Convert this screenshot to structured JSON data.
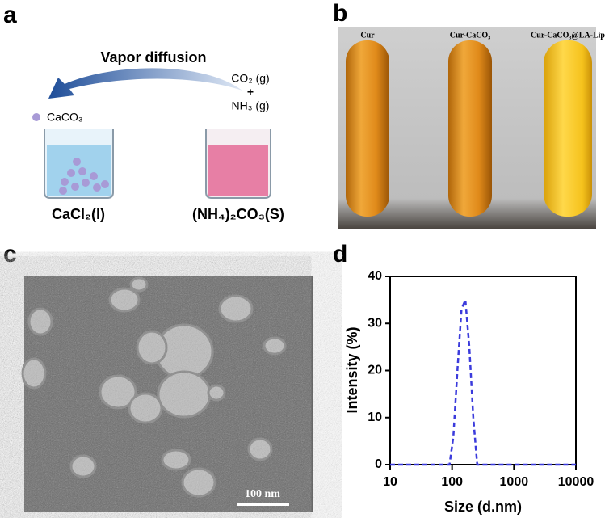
{
  "panels": {
    "a": {
      "label": "a",
      "arrow_label": "Vapor diffusion",
      "particle_label": "CaCO₃",
      "gas_1": "CO₂ (g)",
      "plus": "+",
      "gas_2": "NH₃ (g)",
      "beaker_left": "CaCl₂(l)",
      "beaker_right": "(NH₄)₂CO₃(S)"
    },
    "b": {
      "label": "b",
      "tubes": [
        "Cur",
        "Cur-CaCO₃",
        "Cur-CaCO₃@LA-Lip"
      ]
    },
    "c": {
      "label": "c",
      "scale_bar": "100 nm"
    }
  },
  "chart_data": {
    "type": "line",
    "panel_label": "d",
    "xlabel": "Size (d.nm)",
    "ylabel": "Intensity (%)",
    "x": [
      10,
      50,
      91,
      105,
      122,
      142,
      164,
      190,
      220,
      255,
      1000,
      5000,
      10000
    ],
    "values": [
      0,
      0,
      0,
      6,
      20,
      33,
      35,
      25,
      10,
      0,
      0,
      0,
      0
    ],
    "color": "#3b3bdc",
    "line_style": "dashed",
    "xscale": "log",
    "xlim": [
      10,
      10000
    ],
    "xticks": [
      10,
      100,
      1000,
      10000
    ],
    "ylim": [
      0,
      40
    ],
    "yticks": [
      0,
      10,
      20,
      30,
      40
    ]
  }
}
